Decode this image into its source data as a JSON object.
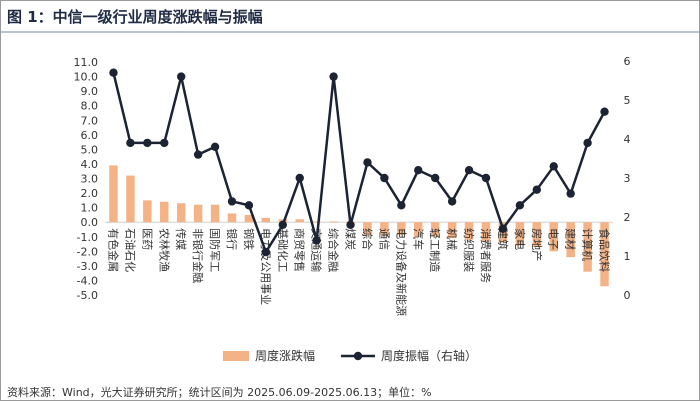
{
  "title": "图 1：中信一级行业周度涨跌幅与振幅",
  "source": "资料来源：Wind，光大证券研究所；统计区间为 2025.06.09-2025.06.13；单位：%",
  "colors": {
    "bar": "#f4b387",
    "line": "#1c2333"
  },
  "chart_data": {
    "type": "bar",
    "categories": [
      "有色金属",
      "石油石化",
      "医药",
      "农林牧渔",
      "传媒",
      "非银行金融",
      "国防军工",
      "银行",
      "钢铁",
      "电力及公用事业",
      "基础化工",
      "商贸零售",
      "交通运输",
      "综合金融",
      "煤炭",
      "综合",
      "通信",
      "电力设备及新能源",
      "汽车",
      "轻工制造",
      "机械",
      "纺织服装",
      "消费者服务",
      "建筑",
      "家电",
      "房地产",
      "电子",
      "建材",
      "计算机",
      "食品饮料"
    ],
    "series": [
      {
        "name": "周度涨跌幅",
        "type": "bar",
        "axis": "left",
        "values": [
          3.9,
          3.2,
          1.5,
          1.4,
          1.3,
          1.2,
          1.2,
          0.6,
          0.5,
          0.3,
          0.2,
          0.2,
          0.05,
          0.05,
          -0.1,
          -0.9,
          -0.9,
          -0.9,
          -1.0,
          -1.0,
          -1.1,
          -1.2,
          -1.3,
          -1.4,
          -1.6,
          -1.7,
          -2.0,
          -2.4,
          -3.4,
          -4.4
        ]
      },
      {
        "name": "周度振幅（右轴）",
        "type": "line",
        "axis": "right",
        "values": [
          5.7,
          3.9,
          3.9,
          3.9,
          5.6,
          3.6,
          3.8,
          2.4,
          2.3,
          1.1,
          1.8,
          3.0,
          1.4,
          5.6,
          1.8,
          3.4,
          3.0,
          2.3,
          3.2,
          3.0,
          2.4,
          3.2,
          3.0,
          1.7,
          2.3,
          2.7,
          3.3,
          2.6,
          3.9,
          4.7
        ]
      }
    ],
    "y_left": {
      "min": -5.0,
      "max": 11.0,
      "step": 1.0,
      "ticks": [
        "11.0",
        "10.0",
        "9.0",
        "8.0",
        "7.0",
        "6.0",
        "5.0",
        "4.0",
        "3.0",
        "2.0",
        "1.0",
        "0.0",
        "-1.0",
        "-2.0",
        "-3.0",
        "-4.0",
        "-5.0"
      ]
    },
    "y_right": {
      "min": 0,
      "max": 6,
      "step": 1,
      "ticks": [
        "6",
        "5",
        "4",
        "3",
        "2",
        "1",
        "0"
      ]
    },
    "legend": [
      {
        "label": "周度涨跌幅",
        "kind": "bar"
      },
      {
        "label": "周度振幅（右轴）",
        "kind": "line"
      }
    ],
    "legend_position": "bottom",
    "grid": false
  }
}
